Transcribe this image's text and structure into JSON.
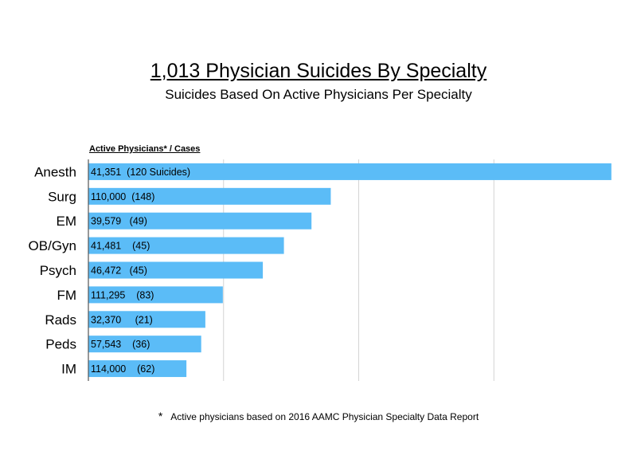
{
  "chart_data": {
    "type": "bar",
    "orientation": "horizontal",
    "title": "1,013 Physician Suicides By Specialty",
    "subtitle": "Suicides Based On Active Physicians Per Specialty",
    "column_header": "Active Physicians* / Cases",
    "categories": [
      "Anesth",
      "Surg",
      "EM",
      "OB/Gyn",
      "Psych",
      "FM",
      "Rads",
      "Peds",
      "IM"
    ],
    "values": [
      290.2,
      134.5,
      123.8,
      108.5,
      96.8,
      74.6,
      64.9,
      62.6,
      54.4
    ],
    "data_labels": [
      "41,351  (120 Suicides)",
      "110,000  (148)",
      "39,579   (49)",
      "41,481    (45)",
      "46,472   (45)",
      "111,295    (83)",
      "32,370     (21)",
      "57,543    (36)",
      "114,000    (62)"
    ],
    "xlim": [
      0,
      300
    ],
    "x_gridlines": [
      75,
      150,
      225
    ],
    "grid": true,
    "bar_color": "#5bbcf7",
    "footnote_symbol": "*",
    "footnote": "Active physicians based on 2016 AAMC Physician Specialty Data Report"
  }
}
